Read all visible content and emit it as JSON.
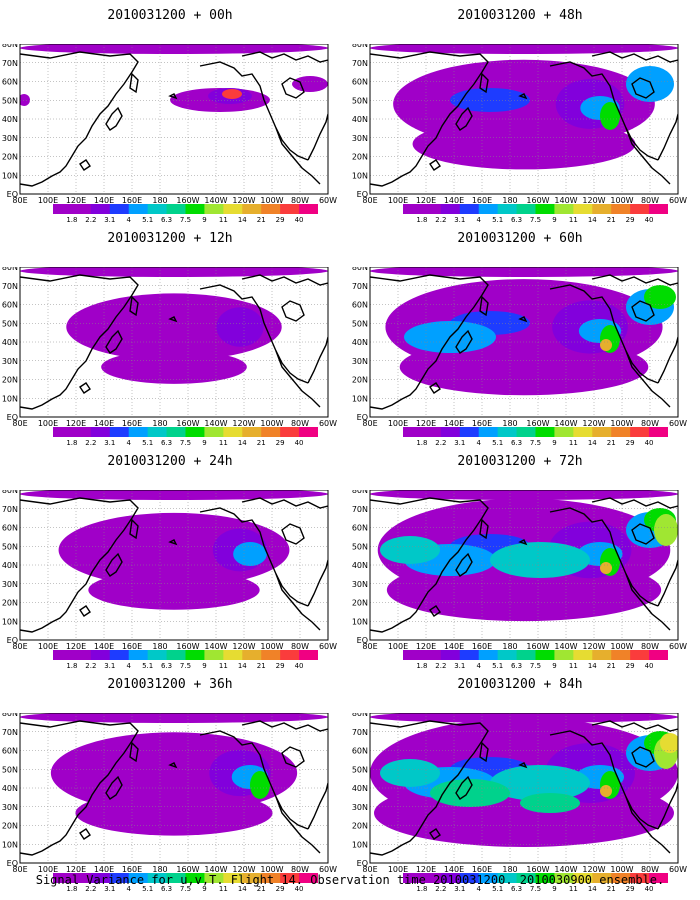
{
  "panels": [
    {
      "title": "2010031200 + 00h",
      "level": 0
    },
    {
      "title": "2010031200 + 48h",
      "level": 4
    },
    {
      "title": "2010031200 + 12h",
      "level": 1
    },
    {
      "title": "2010031200 + 60h",
      "level": 5
    },
    {
      "title": "2010031200 + 24h",
      "level": 2
    },
    {
      "title": "2010031200 + 72h",
      "level": 6
    },
    {
      "title": "2010031200 + 36h",
      "level": 3
    },
    {
      "title": "2010031200 + 84h",
      "level": 7
    }
  ],
  "map": {
    "lat_labels": [
      "80N",
      "70N",
      "60N",
      "50N",
      "40N",
      "30N",
      "20N",
      "10N",
      "EQ"
    ],
    "lon_labels": [
      "80E",
      "100E",
      "120E",
      "140E",
      "160E",
      "180",
      "160W",
      "140W",
      "120W",
      "100W",
      "80W",
      "60W"
    ]
  },
  "colorbar": {
    "labels": [
      "1.8",
      "2.2",
      "3.1",
      "4",
      "5.1",
      "6.3",
      "7.5",
      "9",
      "11",
      "14",
      "21",
      "29",
      "40"
    ],
    "colors": [
      "#a000c8",
      "#8200dc",
      "#1e3cff",
      "#00a0ff",
      "#00c8c8",
      "#00d28c",
      "#00dc00",
      "#a0e632",
      "#e6dc32",
      "#e6af2d",
      "#f08228",
      "#fa3c3c",
      "#f00082"
    ]
  },
  "footer": "Signal Variance for u,v,T. Flight 14. Observation time 2010031200. 2010030900 ensemble."
}
